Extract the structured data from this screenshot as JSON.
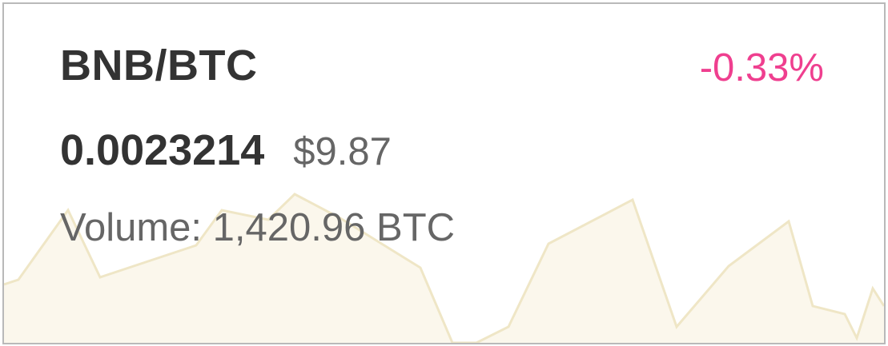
{
  "ticker": {
    "pair": "BNB/BTC",
    "change": "-0.33%",
    "price": "0.0023214",
    "usd_price": "$9.87",
    "volume": "Volume: 1,420.96 BTC"
  },
  "colors": {
    "change_negative": "#ef3f8f",
    "sparkline_fill": "#fbf7ec",
    "sparkline_stroke": "#efe6c6"
  }
}
